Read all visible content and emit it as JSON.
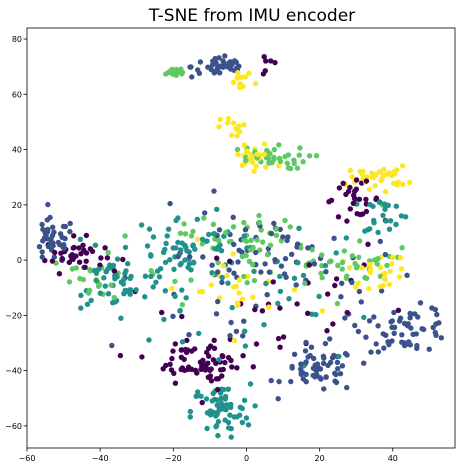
{
  "chart_data": {
    "type": "scatter",
    "title": "T-SNE from IMU encoder",
    "xlabel": "",
    "ylabel": "",
    "xlim": [
      -60,
      57
    ],
    "ylim": [
      -68,
      84
    ],
    "x_ticks": [
      -60,
      -40,
      -20,
      0,
      20,
      40
    ],
    "y_ticks": [
      -60,
      -40,
      -20,
      0,
      20,
      40,
      60,
      80
    ],
    "grid": false,
    "legend": "none",
    "colormap": "viridis",
    "class_colors": [
      "#440154",
      "#3b528b",
      "#21918c",
      "#5ec962",
      "#fde725"
    ],
    "clusters": [
      {
        "name": "purple-left",
        "color": "#440154",
        "center": [
          -47,
          2
        ],
        "spread": [
          4,
          3
        ],
        "count": 35
      },
      {
        "name": "purple-mid",
        "color": "#440154",
        "center": [
          -17,
          -36
        ],
        "spread": [
          4,
          4
        ],
        "count": 30
      },
      {
        "name": "purple-mid2",
        "color": "#440154",
        "center": [
          -8,
          -38
        ],
        "spread": [
          4,
          4
        ],
        "count": 35
      },
      {
        "name": "purple-upper-right",
        "color": "#440154",
        "center": [
          29,
          22
        ],
        "spread": [
          4,
          3
        ],
        "count": 30
      },
      {
        "name": "purple-top",
        "color": "#440154",
        "center": [
          6,
          71
        ],
        "spread": [
          1,
          2
        ],
        "count": 6
      },
      {
        "name": "blue-top",
        "color": "#3b528b",
        "center": [
          -7,
          70
        ],
        "spread": [
          4,
          2
        ],
        "count": 40
      },
      {
        "name": "blue-left",
        "color": "#3b528b",
        "center": [
          -53,
          7
        ],
        "spread": [
          3,
          4
        ],
        "count": 40
      },
      {
        "name": "blue-bottom-right",
        "color": "#3b528b",
        "center": [
          20,
          -40
        ],
        "spread": [
          5,
          4
        ],
        "count": 60
      },
      {
        "name": "blue-right",
        "color": "#3b528b",
        "center": [
          44,
          -25
        ],
        "spread": [
          6,
          4
        ],
        "count": 55
      },
      {
        "name": "blue-mid",
        "color": "#3b528b",
        "center": [
          5,
          2
        ],
        "spread": [
          10,
          6
        ],
        "count": 40
      },
      {
        "name": "teal-bottom",
        "color": "#21918c",
        "center": [
          -7,
          -55
        ],
        "spread": [
          4,
          5
        ],
        "count": 60
      },
      {
        "name": "teal-left-mid",
        "color": "#21918c",
        "center": [
          -35,
          -8
        ],
        "spread": [
          6,
          5
        ],
        "count": 40
      },
      {
        "name": "teal-center",
        "color": "#21918c",
        "center": [
          -18,
          4
        ],
        "spread": [
          8,
          6
        ],
        "count": 60
      },
      {
        "name": "teal-right",
        "color": "#21918c",
        "center": [
          38,
          17
        ],
        "spread": [
          3,
          3
        ],
        "count": 20
      },
      {
        "name": "green-top",
        "color": "#5ec962",
        "center": [
          -20,
          68
        ],
        "spread": [
          2,
          1
        ],
        "count": 15
      },
      {
        "name": "green-upper",
        "color": "#5ec962",
        "center": [
          5,
          37
        ],
        "spread": [
          6,
          2
        ],
        "count": 35
      },
      {
        "name": "green-right-mid",
        "color": "#5ec962",
        "center": [
          28,
          -2
        ],
        "spread": [
          6,
          3
        ],
        "count": 30
      },
      {
        "name": "green-center",
        "color": "#5ec962",
        "center": [
          -5,
          8
        ],
        "spread": [
          6,
          4
        ],
        "count": 25
      },
      {
        "name": "green-left",
        "color": "#5ec962",
        "center": [
          -42,
          -8
        ],
        "spread": [
          5,
          5
        ],
        "count": 20
      },
      {
        "name": "yellow-upper-mid",
        "color": "#fde725",
        "center": [
          -3,
          48
        ],
        "spread": [
          2,
          2
        ],
        "count": 12
      },
      {
        "name": "yellow-upper-mid2",
        "color": "#fde725",
        "center": [
          -1,
          64
        ],
        "spread": [
          2,
          2
        ],
        "count": 12
      },
      {
        "name": "yellow-upper",
        "color": "#fde725",
        "center": [
          2,
          37
        ],
        "spread": [
          3,
          3
        ],
        "count": 25
      },
      {
        "name": "yellow-upper-right",
        "color": "#fde725",
        "center": [
          36,
          30
        ],
        "spread": [
          4,
          2
        ],
        "count": 35
      },
      {
        "name": "yellow-right-mid",
        "color": "#fde725",
        "center": [
          36,
          -4
        ],
        "spread": [
          4,
          3
        ],
        "count": 25
      },
      {
        "name": "yellow-scatter",
        "color": "#fde725",
        "center": [
          -5,
          -10
        ],
        "spread": [
          12,
          8
        ],
        "count": 30
      }
    ],
    "scatter_background": [
      {
        "color": "#21918c",
        "center": [
          0,
          -10
        ],
        "spread": [
          22,
          14
        ],
        "count": 60
      },
      {
        "color": "#3b528b",
        "center": [
          5,
          -10
        ],
        "spread": [
          22,
          14
        ],
        "count": 50
      },
      {
        "color": "#440154",
        "center": [
          0,
          -15
        ],
        "spread": [
          22,
          14
        ],
        "count": 35
      },
      {
        "color": "#5ec962",
        "center": [
          5,
          5
        ],
        "spread": [
          22,
          10
        ],
        "count": 40
      }
    ]
  }
}
